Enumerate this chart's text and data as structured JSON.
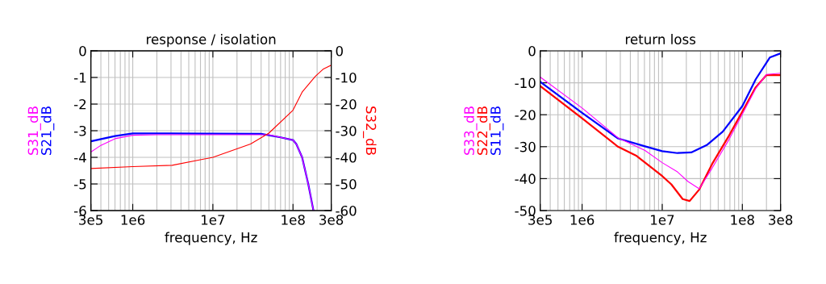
{
  "chart_data": [
    {
      "type": "line",
      "title": "response / isolation",
      "xlabel": "frequency, Hz",
      "log": "x",
      "grid": true,
      "xlim": [
        300000,
        300000000
      ],
      "xticks": [
        {
          "value": 300000,
          "label": "3e5"
        },
        {
          "value": 1000000,
          "label": "1e6"
        },
        {
          "value": 10000000,
          "label": "1e7"
        },
        {
          "value": 100000000,
          "label": "1e8"
        },
        {
          "value": 300000000,
          "label": "3e8"
        }
      ],
      "ylim": [
        -6,
        0
      ],
      "yticks": [
        -6,
        -5,
        -4,
        -3,
        -2,
        -1,
        0
      ],
      "y2lim": [
        -60,
        0
      ],
      "y2ticks": [
        -60,
        -50,
        -40,
        -30,
        -20,
        -10,
        0
      ],
      "series": [
        {
          "name": "S31_dB",
          "color": "#ff00ff",
          "x": [
            300000,
            400000,
            600000,
            1000000,
            2000000,
            10000000,
            50000000,
            70000000,
            100000000,
            110000000,
            130000000,
            155000000,
            180000000
          ],
          "values": [
            -3.8,
            -3.55,
            -3.3,
            -3.17,
            -3.15,
            -3.15,
            -3.15,
            -3.25,
            -3.35,
            -3.5,
            -4.0,
            -5.0,
            -6.0
          ]
        },
        {
          "name": "S21_dB",
          "color": "#0000ff",
          "x": [
            300000,
            600000,
            1000000,
            3000000,
            10000000,
            40000000,
            70000000,
            100000000,
            110000000,
            130000000,
            155000000,
            180000000
          ],
          "values": [
            -3.4,
            -3.2,
            -3.1,
            -3.1,
            -3.11,
            -3.12,
            -3.25,
            -3.35,
            -3.5,
            -4.0,
            -5.0,
            -6.0
          ]
        },
        {
          "name": "S32_dB",
          "color": "#ff0000",
          "axis": "y2",
          "x": [
            300000,
            1000000,
            3100000,
            10000000,
            29500000,
            50000000,
            100000000,
            130000000,
            190000000,
            240000000,
            300000000
          ],
          "values": [
            -44.2,
            -43.5,
            -43,
            -40,
            -35,
            -30.9,
            -22.3,
            -15.5,
            -9.6,
            -6.8,
            -5.4
          ]
        }
      ]
    },
    {
      "type": "line",
      "title": "return loss",
      "xlabel": "frequency, Hz",
      "log": "x",
      "grid": true,
      "xlim": [
        300000,
        300000000
      ],
      "xticks": [
        {
          "value": 300000,
          "label": "3e5"
        },
        {
          "value": 1000000,
          "label": "1e6"
        },
        {
          "value": 10000000,
          "label": "1e7"
        },
        {
          "value": 100000000,
          "label": "1e8"
        },
        {
          "value": 300000000,
          "label": "3e8"
        }
      ],
      "ylim": [
        -50,
        0
      ],
      "yticks": [
        -50,
        -40,
        -30,
        -20,
        -10,
        0
      ],
      "series": [
        {
          "name": "S33_dB",
          "color": "#ff00ff",
          "x": [
            300000,
            1000000,
            2800000,
            6100000,
            10000000,
            15500000,
            21000000,
            29000000,
            42000000,
            68000000,
            100000000,
            147000000,
            200000000,
            300000000
          ],
          "values": [
            -8.2,
            -17.9,
            -27.2,
            -31.2,
            -35,
            -37.9,
            -40.9,
            -43.2,
            -36.7,
            -27.8,
            -19.8,
            -11.8,
            -7.4,
            -7
          ]
        },
        {
          "name": "S22_dB",
          "color": "#ff0000",
          "x": [
            300000,
            1000000,
            2800000,
            4800000,
            10000000,
            13000000,
            18000000,
            22000000,
            29000000,
            42000000,
            68000000,
            100000000,
            147000000,
            200000000,
            300000000
          ],
          "values": [
            -11,
            -21.1,
            -30,
            -32.9,
            -39.2,
            -41.8,
            -46.4,
            -47,
            -43.4,
            -35.4,
            -26.6,
            -19,
            -11.4,
            -7.6,
            -7.6
          ]
        },
        {
          "name": "S11_dB",
          "color": "#0000ff",
          "x": [
            300000,
            1000000,
            2800000,
            6100000,
            10000000,
            15500000,
            23000000,
            36000000,
            57000000,
            100000000,
            147000000,
            220000000,
            300000000
          ],
          "values": [
            -9.7,
            -19.4,
            -27.4,
            -29.9,
            -31.4,
            -32,
            -31.8,
            -29.5,
            -25.3,
            -17.3,
            -8.9,
            -2.1,
            -0.8
          ]
        }
      ]
    }
  ]
}
